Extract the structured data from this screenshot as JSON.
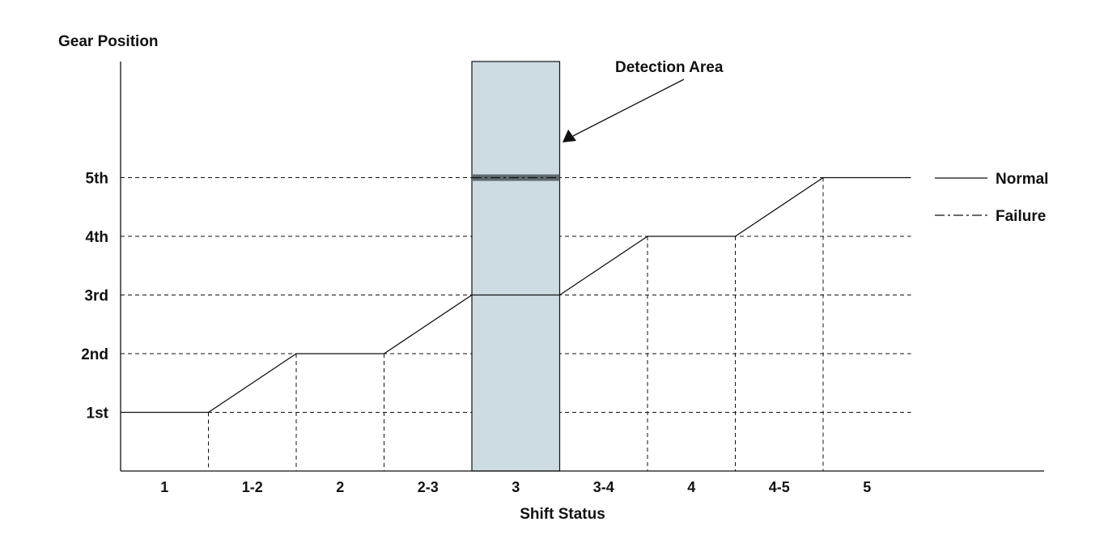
{
  "chart_data": {
    "type": "line",
    "ylabel": "Gear Position",
    "xlabel": "Shift Status",
    "y_categories": [
      "1st",
      "2nd",
      "3rd",
      "4th",
      "5th"
    ],
    "x_categories": [
      "1",
      "1-2",
      "2",
      "2-3",
      "3",
      "3-4",
      "4",
      "4-5",
      "5"
    ],
    "series": [
      {
        "name": "Normal",
        "style": "solid",
        "x": [
          0,
          1,
          1,
          2,
          2,
          3,
          3,
          4,
          4,
          5,
          5,
          6,
          6,
          7,
          7,
          8,
          8,
          9
        ],
        "y": [
          1,
          1,
          1,
          2,
          2,
          2,
          2,
          3,
          3,
          3,
          3,
          4,
          4,
          4,
          4,
          5,
          5,
          5
        ]
      },
      {
        "name": "Failure",
        "style": "dash-dot",
        "x": [
          4,
          5
        ],
        "y": [
          5,
          5
        ]
      }
    ],
    "highlight": {
      "label": "Detection Area",
      "category": "3"
    },
    "legend": {
      "position": "right",
      "entries": [
        "Normal",
        "Failure"
      ]
    },
    "grid": {
      "horizontal": "dashed",
      "vertical": "dashed-drop-lines"
    },
    "colors": {
      "line": "#111111",
      "highlight_fill": "#cddbe2",
      "failure_line": "#5e6a6e"
    }
  }
}
